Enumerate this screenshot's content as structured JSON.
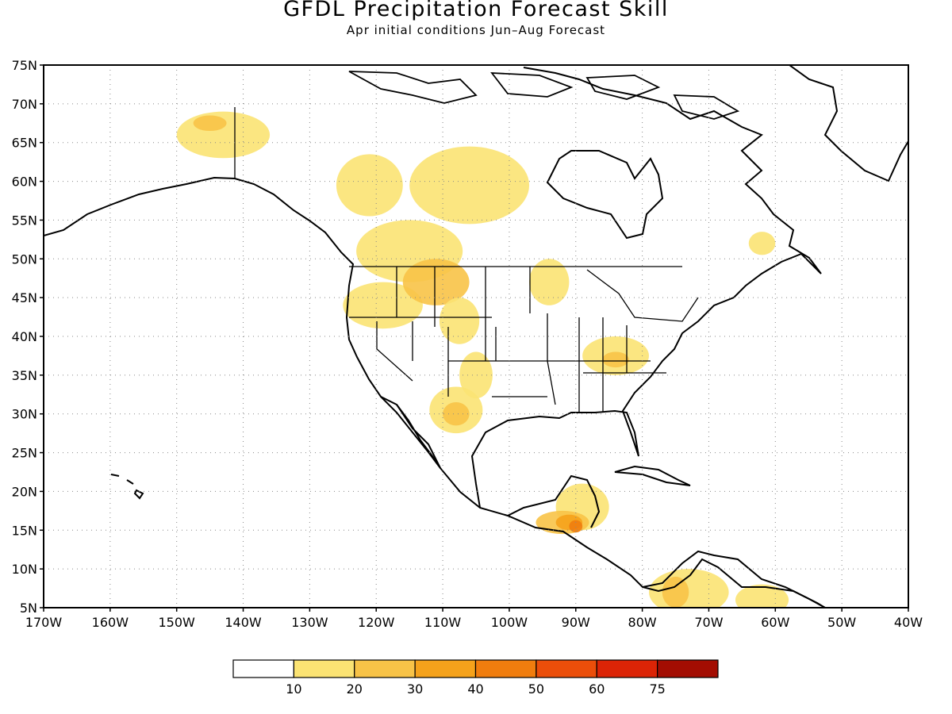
{
  "title": "GFDL Precipitation Forecast Skill",
  "subtitle": "Apr initial conditions  Jun–Aug Forecast",
  "map": {
    "lon_range": [
      -170,
      -40
    ],
    "lat_range": [
      5,
      75
    ],
    "grid": true,
    "lon_ticks": [
      "170W",
      "160W",
      "150W",
      "140W",
      "130W",
      "120W",
      "110W",
      "100W",
      "90W",
      "80W",
      "70W",
      "60W",
      "50W",
      "40W"
    ],
    "lat_ticks": [
      "5N",
      "10N",
      "15N",
      "20N",
      "25N",
      "30N",
      "35N",
      "40N",
      "45N",
      "50N",
      "55N",
      "60N",
      "65N",
      "70N",
      "75N"
    ]
  },
  "colorbar": {
    "colors": [
      "#ffffff",
      "#fbe373",
      "#f8c347",
      "#f5a21b",
      "#f07d0e",
      "#eb4e0a",
      "#dc2406",
      "#a30d02"
    ],
    "labels": [
      "10",
      "20",
      "30",
      "40",
      "50",
      "60",
      "75"
    ]
  },
  "skill_regions": [
    {
      "name": "alaska-north",
      "level": 1,
      "lon": -143,
      "lat": 66,
      "rlon": 7,
      "rlat": 3
    },
    {
      "name": "alaska-core",
      "level": 2,
      "lon": -145,
      "lat": 67.5,
      "rlon": 2.5,
      "rlat": 1
    },
    {
      "name": "yukon",
      "level": 1,
      "lon": -121,
      "lat": 59.5,
      "rlon": 5,
      "rlat": 4
    },
    {
      "name": "nwt",
      "level": 1,
      "lon": -106,
      "lat": 59.5,
      "rlon": 9,
      "rlat": 5
    },
    {
      "name": "bc-alberta",
      "level": 1,
      "lon": -115,
      "lat": 51,
      "rlon": 8,
      "rlat": 4
    },
    {
      "name": "pacific-nw",
      "level": 1,
      "lon": -119,
      "lat": 44,
      "rlon": 6,
      "rlat": 3
    },
    {
      "name": "montana",
      "level": 2,
      "lon": -111,
      "lat": 47,
      "rlon": 5,
      "rlat": 3
    },
    {
      "name": "wyoming",
      "level": 1,
      "lon": -107.5,
      "lat": 42,
      "rlon": 3,
      "rlat": 3
    },
    {
      "name": "minnesota",
      "level": 1,
      "lon": -94,
      "lat": 47,
      "rlon": 3,
      "rlat": 3
    },
    {
      "name": "colorado-nm",
      "level": 1,
      "lon": -105,
      "lat": 35,
      "rlon": 2.5,
      "rlat": 3
    },
    {
      "name": "texas-mexico",
      "level": 1,
      "lon": -108,
      "lat": 30.5,
      "rlon": 4,
      "rlat": 3
    },
    {
      "name": "texas-core",
      "level": 2,
      "lon": -108,
      "lat": 30,
      "rlon": 2,
      "rlat": 1.5
    },
    {
      "name": "tennessee",
      "level": 1,
      "lon": -84,
      "lat": 37.5,
      "rlon": 5,
      "rlat": 2.5
    },
    {
      "name": "tennessee-core",
      "level": 2,
      "lon": -84,
      "lat": 37,
      "rlon": 2,
      "rlat": 1
    },
    {
      "name": "yucatan",
      "level": 1,
      "lon": -89,
      "lat": 18,
      "rlon": 4,
      "rlat": 3
    },
    {
      "name": "guatemala",
      "level": 2,
      "lon": -92,
      "lat": 16,
      "rlon": 4,
      "rlat": 1.5
    },
    {
      "name": "guatemala-core",
      "level": 3,
      "lon": -91,
      "lat": 16,
      "rlon": 2,
      "rlat": 1
    },
    {
      "name": "guatemala-peak",
      "level": 4,
      "lon": -90,
      "lat": 15.5,
      "rlon": 1,
      "rlat": 0.8
    },
    {
      "name": "colombia",
      "level": 1,
      "lon": -73,
      "lat": 7,
      "rlon": 6,
      "rlat": 3
    },
    {
      "name": "colombia-core",
      "level": 2,
      "lon": -75,
      "lat": 7,
      "rlon": 2,
      "rlat": 2
    },
    {
      "name": "venezuela",
      "level": 1,
      "lon": -62,
      "lat": 6,
      "rlon": 4,
      "rlat": 2
    },
    {
      "name": "labrador",
      "level": 1,
      "lon": -62,
      "lat": 52,
      "rlon": 2,
      "rlat": 1.5
    }
  ]
}
